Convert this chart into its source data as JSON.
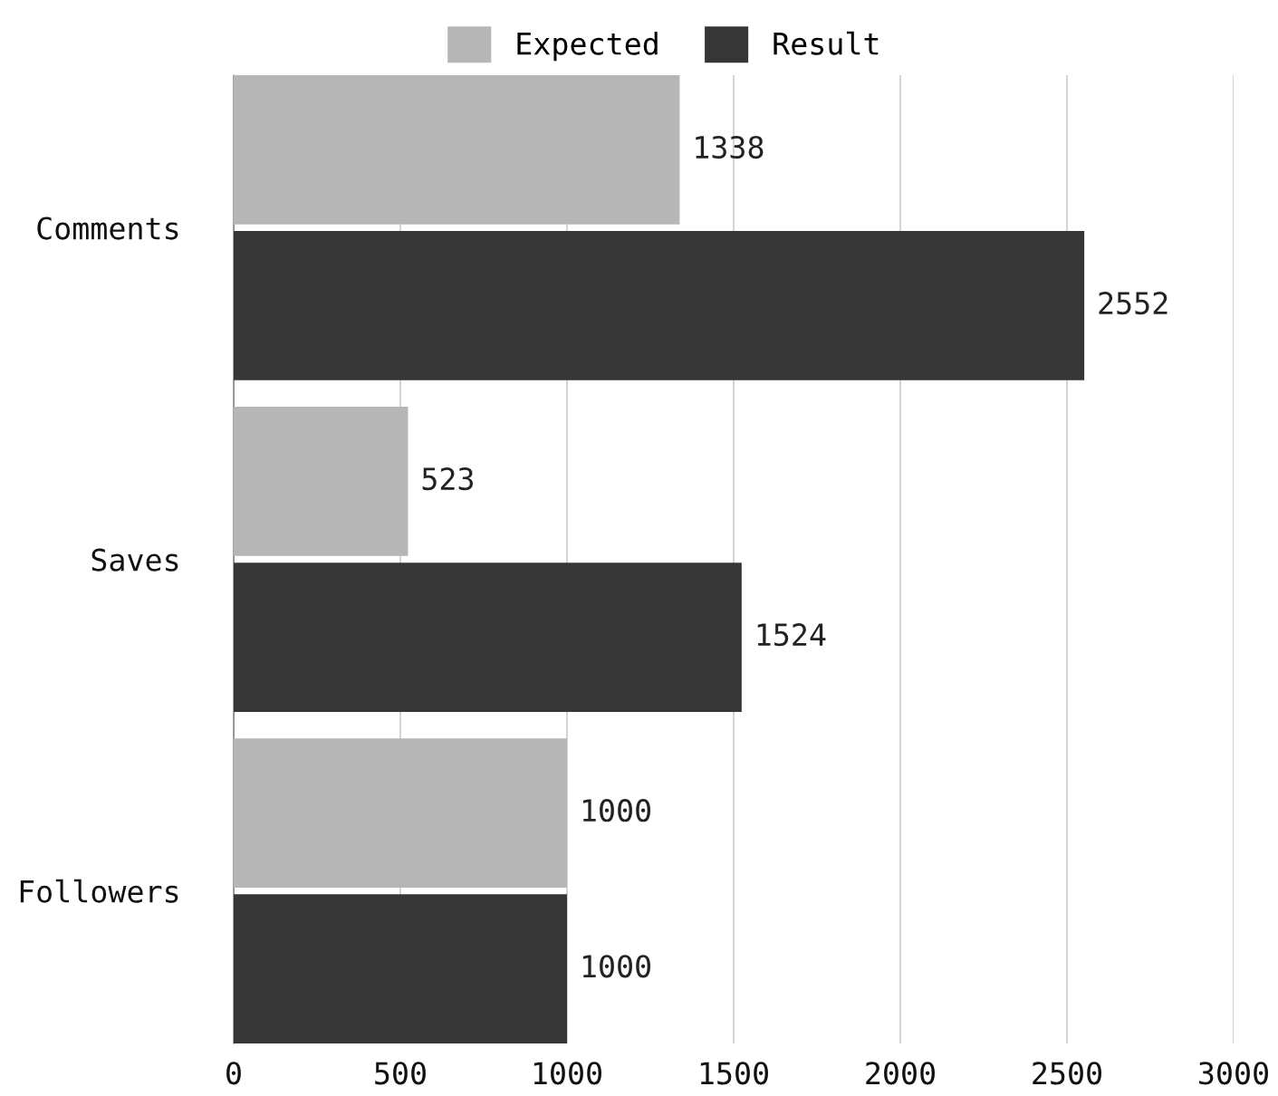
{
  "chart_data": {
    "type": "bar",
    "orientation": "horizontal",
    "categories": [
      "Comments",
      "Saves",
      "Followers"
    ],
    "series": [
      {
        "name": "Expected",
        "color": "#b7b6b7",
        "values": [
          1338,
          523,
          1000
        ]
      },
      {
        "name": "Result",
        "color": "#363636",
        "values": [
          2552,
          1524,
          1000
        ]
      }
    ],
    "xlim": [
      0,
      3000
    ],
    "xticks": [
      0,
      500,
      1000,
      1500,
      2000,
      2500,
      3000
    ],
    "grid": "x",
    "legend": "top",
    "data_labels": true
  }
}
